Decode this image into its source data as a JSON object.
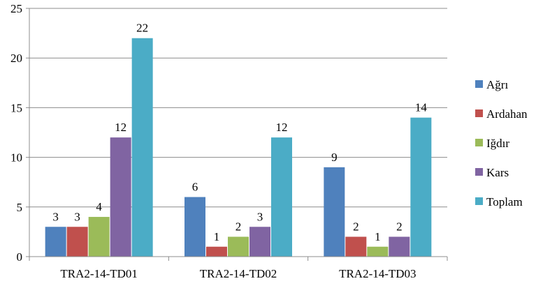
{
  "chart_data": {
    "type": "bar",
    "title": "",
    "xlabel": "",
    "ylabel": "",
    "categories": [
      "TRA2-14-TD01",
      "TRA2-14-TD02",
      "TRA2-14-TD03"
    ],
    "series": [
      {
        "name": "Ağrı",
        "values": [
          3,
          6,
          9
        ],
        "color": "#4F81BD"
      },
      {
        "name": "Ardahan",
        "values": [
          3,
          1,
          2
        ],
        "color": "#C0504D"
      },
      {
        "name": "Iğdır",
        "values": [
          4,
          2,
          1
        ],
        "color": "#9BBB59"
      },
      {
        "name": "Kars",
        "values": [
          12,
          3,
          2
        ],
        "color": "#8064A2"
      },
      {
        "name": "Toplam",
        "values": [
          22,
          12,
          14
        ],
        "color": "#4BACC6"
      }
    ],
    "ylim": [
      0,
      25
    ],
    "yticks": [
      0,
      5,
      10,
      15,
      20,
      25
    ],
    "grid": true,
    "legend": "right"
  }
}
